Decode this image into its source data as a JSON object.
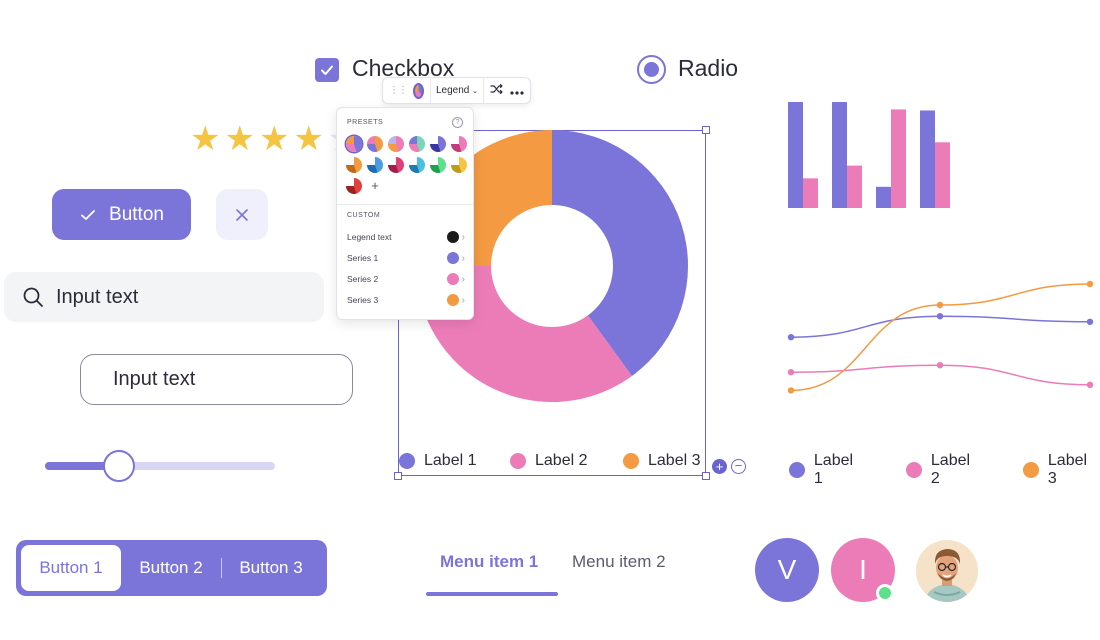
{
  "checkbox": {
    "label": "Checkbox",
    "checked": true
  },
  "radio": {
    "label": "Radio",
    "selected": true
  },
  "rating": {
    "value": 4,
    "max": 5
  },
  "primary_button": {
    "label": "Button",
    "icon": "check-icon"
  },
  "close_button": {
    "icon": "close-icon"
  },
  "search_input": {
    "placeholder": "Input text",
    "icon": "search-icon"
  },
  "mail_input": {
    "placeholder": "Input text",
    "icon": "mail-icon"
  },
  "slider": {
    "value_percent": 32
  },
  "segmented": {
    "items": [
      "Button 1",
      "Button 2",
      "Button 3"
    ],
    "active_index": 0
  },
  "menu": {
    "items": [
      "Menu item 1",
      "Menu item 2"
    ],
    "active_index": 0
  },
  "avatars": [
    {
      "initial": "V",
      "color": "#7b74d9"
    },
    {
      "initial": "I",
      "color": "#ec7cb8",
      "online": true
    },
    {
      "kind": "photo"
    }
  ],
  "toolbar": {
    "legend_label": "Legend",
    "icons": [
      "drag-grip-icon",
      "color-swatch-icon",
      "shuffle-icon",
      "more-icon"
    ]
  },
  "popover": {
    "presets_title": "PRESETS",
    "custom_title": "CUSTOM",
    "help_icon": "?",
    "presets": [
      [
        "#7b74d9",
        "#ec7cb8",
        "#f39a42"
      ],
      [
        "#f39a42",
        "#7b74d9",
        "#ec7cb8"
      ],
      [
        "#ec7cb8",
        "#f39a42",
        "#b9b4f0"
      ],
      [
        "#7bd6b8",
        "#ec7cb8",
        "#7b74d9"
      ],
      [
        "#7b74d9",
        "#3b36a0",
        "#ffffff"
      ],
      [
        "#ec7cb8",
        "#c03c7a",
        "#ffffff"
      ],
      [
        "#f39a42",
        "#c06a1a",
        "#ffffff"
      ],
      [
        "#4a9de0",
        "#1f6db0",
        "#ffffff"
      ],
      [
        "#e0407a",
        "#a01f4a",
        "#ffffff"
      ],
      [
        "#4ac0e0",
        "#1f7ab0",
        "#ffffff"
      ],
      [
        "#5ce08a",
        "#1fa050",
        "#ffffff"
      ],
      [
        "#f5c542",
        "#c09a1a",
        "#ffffff"
      ],
      [
        "#e04040",
        "#a01f1f",
        "#ffffff"
      ]
    ],
    "add_label": "+",
    "rows": [
      {
        "label": "Legend text",
        "color": "#1b1b1b"
      },
      {
        "label": "Series 1",
        "color": "#7b74d9"
      },
      {
        "label": "Series 2",
        "color": "#ec7cb8"
      },
      {
        "label": "Series 3",
        "color": "#f39a42"
      }
    ]
  },
  "zoom": {
    "in": "+",
    "out": "−"
  },
  "colors": {
    "purple": "#7b74d9",
    "pink": "#ec7cb8",
    "orange": "#f39a42"
  },
  "chart_data": [
    {
      "type": "pie",
      "donut": true,
      "categories": [
        "Label 1",
        "Label 2",
        "Label 3"
      ],
      "values": [
        40,
        35,
        25
      ],
      "colors": [
        "#7b74d9",
        "#ec7cb8",
        "#f39a42"
      ],
      "legend_position": "bottom"
    },
    {
      "type": "bar",
      "series": [
        {
          "values": [
            100,
            100,
            20,
            92
          ]
        },
        {
          "values": [
            28,
            40,
            93,
            62
          ]
        }
      ],
      "colors": [
        "#7b74d9",
        "#ec7cb8"
      ],
      "ylim": [
        0,
        100
      ],
      "grid": false
    },
    {
      "type": "line",
      "x": [
        0,
        1,
        2
      ],
      "categories": [
        "Label 1",
        "Label 2",
        "Label 3"
      ],
      "series": [
        {
          "name": "Label 1",
          "values": [
            47,
            62,
            58
          ]
        },
        {
          "name": "Label 2",
          "values": [
            22,
            27,
            13
          ]
        },
        {
          "name": "Label 3",
          "values": [
            9,
            70,
            85
          ]
        }
      ],
      "colors": [
        "#7b74d9",
        "#ec7cb8",
        "#f39a42"
      ],
      "ylim": [
        0,
        100
      ],
      "grid": false,
      "legend_position": "bottom"
    }
  ]
}
